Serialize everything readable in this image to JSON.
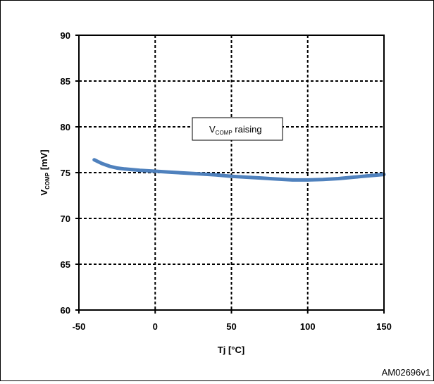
{
  "chart_data": {
    "type": "line",
    "title": "",
    "xlabel": "Tj [°C]",
    "ylabel_main": "V",
    "ylabel_sub": "COMP",
    "ylabel_unit": " [mV]",
    "xlim": [
      -50,
      150
    ],
    "ylim": [
      60,
      90
    ],
    "xticks": [
      -50,
      0,
      50,
      100,
      150
    ],
    "yticks": [
      60,
      65,
      70,
      75,
      80,
      85,
      90
    ],
    "grid": true,
    "grid_style": "dashed",
    "series": [
      {
        "name": "",
        "color": "#4f81bd",
        "x": [
          -40,
          -35,
          -30,
          -25,
          -20,
          -10,
          0,
          10,
          25,
          40,
          50,
          60,
          70,
          80,
          90,
          100,
          110,
          120,
          130,
          140,
          150
        ],
        "y": [
          76.4,
          76.0,
          75.7,
          75.5,
          75.4,
          75.25,
          75.15,
          75.05,
          74.9,
          74.75,
          74.6,
          74.5,
          74.4,
          74.3,
          74.2,
          74.2,
          74.25,
          74.35,
          74.5,
          74.65,
          74.8
        ]
      }
    ],
    "annotation": {
      "main": "V",
      "sub": "COMP",
      "rest": " raising"
    }
  },
  "figure_id": "AM02696v1"
}
